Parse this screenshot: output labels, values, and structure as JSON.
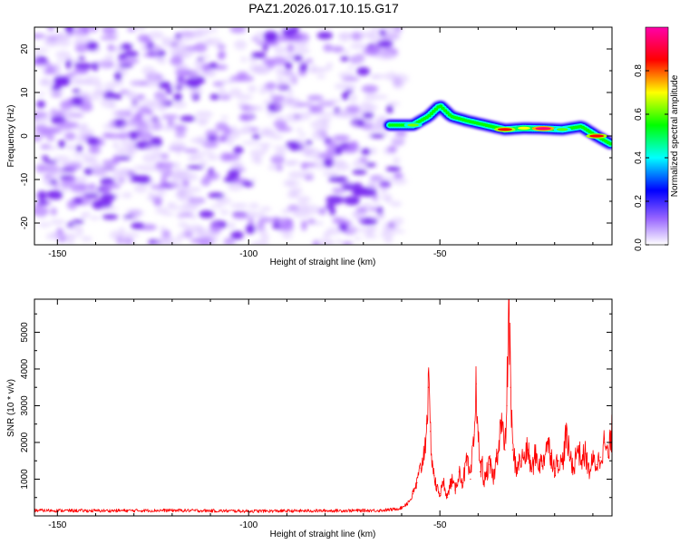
{
  "figure": {
    "title": "PAZ1.2026.017.10.15.G17"
  },
  "chart_data": [
    {
      "type": "heatmap",
      "name": "spectrogram",
      "xlabel": "Height of straight line (km)",
      "ylabel": "Frequency (Hz)",
      "xlim": [
        -156,
        -5
      ],
      "ylim": [
        -25,
        25
      ],
      "xticks": [
        -150,
        -100,
        -50
      ],
      "yticks": [
        -20,
        -10,
        0,
        10,
        20
      ],
      "noise_region_km": [
        -156,
        -60
      ],
      "signal_ridge": {
        "x_km": [
          -63,
          -57,
          -53,
          -50,
          -47,
          -43,
          -38,
          -33,
          -28,
          -23,
          -18,
          -13,
          -9,
          -5
        ],
        "freq_hz": [
          2.5,
          2.5,
          4.5,
          7,
          4.5,
          3.5,
          2.5,
          1.5,
          1.8,
          1.7,
          1.5,
          2.2,
          0,
          -2
        ],
        "amplitude": [
          0.55,
          0.62,
          0.5,
          0.5,
          0.45,
          0.45,
          0.55,
          0.85,
          0.7,
          0.95,
          0.6,
          0.55,
          0.85,
          0.4
        ]
      },
      "colorbar": {
        "label": "Normalized spectral amplitude",
        "range": [
          0,
          1
        ],
        "ticks": [
          "0.0",
          "0.2",
          "0.4",
          "0.6",
          "0.8"
        ],
        "colors": [
          "#ffffff",
          "#9966ff",
          "#0000ff",
          "#00ffff",
          "#00ff00",
          "#ffff00",
          "#ff0000",
          "#ff00aa"
        ]
      }
    },
    {
      "type": "line",
      "name": "snr",
      "xlabel": "Height of straight line (km)",
      "ylabel": "SNR (10 * v/v)",
      "xlim": [
        -156,
        -5
      ],
      "ylim": [
        0,
        5900
      ],
      "xticks": [
        -150,
        -100,
        -50
      ],
      "yticks": [
        1000,
        2000,
        3000,
        4000,
        5000
      ],
      "color": "#ff0000",
      "x": [
        -156,
        -140,
        -120,
        -100,
        -80,
        -65,
        -62,
        -60,
        -58,
        -57,
        -56,
        -55,
        -54,
        -53.5,
        -53,
        -52.5,
        -52,
        -51.5,
        -51,
        -50,
        -49,
        -48,
        -47,
        -46,
        -45,
        -44,
        -43,
        -42,
        -41,
        -40.5,
        -40,
        -39.5,
        -39,
        -38.5,
        -38,
        -37,
        -36,
        -35,
        -34,
        -33,
        -32.5,
        -32,
        -31.5,
        -31,
        -30,
        -29,
        -28,
        -27,
        -26,
        -25,
        -24,
        -23,
        -22,
        -21,
        -20,
        -19,
        -18,
        -17,
        -16,
        -15,
        -14,
        -13,
        -12,
        -11,
        -10,
        -9,
        -8,
        -7,
        -6,
        -5
      ],
      "y": [
        150,
        140,
        150,
        130,
        140,
        150,
        180,
        220,
        400,
        600,
        900,
        1300,
        1800,
        2500,
        3500,
        2300,
        1500,
        1100,
        800,
        600,
        900,
        500,
        1000,
        700,
        1200,
        900,
        1500,
        1000,
        2200,
        3600,
        2300,
        1200,
        1500,
        900,
        1100,
        1400,
        1000,
        1700,
        2600,
        1800,
        3000,
        5900,
        3500,
        1800,
        1300,
        1500,
        1600,
        1800,
        1200,
        1700,
        1400,
        1500,
        2000,
        1700,
        1300,
        1500,
        1400,
        2200,
        1600,
        1300,
        1900,
        1500,
        1700,
        1200,
        1500,
        1400,
        1600,
        2000,
        1600,
        2300
      ]
    }
  ]
}
